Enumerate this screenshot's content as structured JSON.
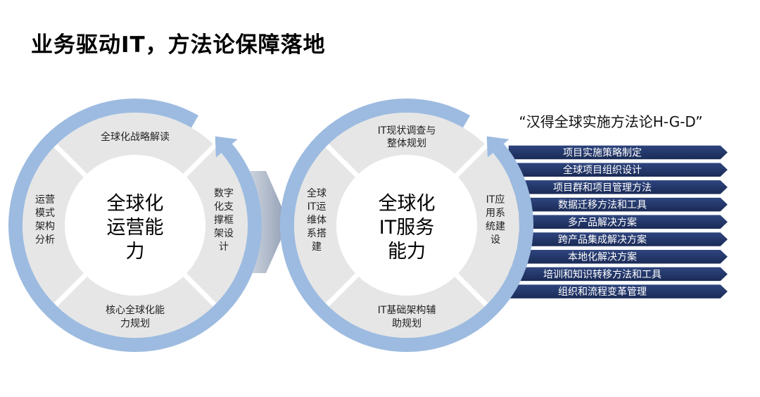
{
  "title": "业务驱动IT，方法论保障落地",
  "colors": {
    "ring": "#9dbbe0",
    "segment": "#e6e6e6",
    "bar": "#1f3160",
    "connector": "#a9b4c6"
  },
  "left_cycle": {
    "core": [
      "全球化",
      "运营能",
      "力"
    ],
    "top": [
      "全球化战略解读"
    ],
    "right": [
      "数字",
      "化支",
      "撑框",
      "架设",
      "计"
    ],
    "bottom": [
      "核心全球化能",
      "力规划"
    ],
    "left": [
      "运营",
      "模式",
      "架构",
      "分析"
    ]
  },
  "right_cycle": {
    "core": [
      "全球化",
      "IT服务",
      "能力"
    ],
    "top": [
      "IT现状调查与",
      "整体规划"
    ],
    "right": [
      "IT应",
      "用系",
      "统建",
      "设"
    ],
    "bottom": [
      "IT基础架构辅",
      "助规划"
    ],
    "left": [
      "全球",
      "IT运",
      "维体",
      "系搭",
      "建"
    ]
  },
  "methodology": {
    "title": "“汉得全球实施方法论H-G-D”",
    "items": [
      "项目实施策略制定",
      "全球项目组织设计",
      "项目群和项目管理方法",
      "数据迁移方法和工具",
      "多产品解决方案",
      "跨产品集成解决方案",
      "本地化解决方案",
      "培训和知识转移方法和工具",
      "组织和流程变革管理"
    ]
  }
}
